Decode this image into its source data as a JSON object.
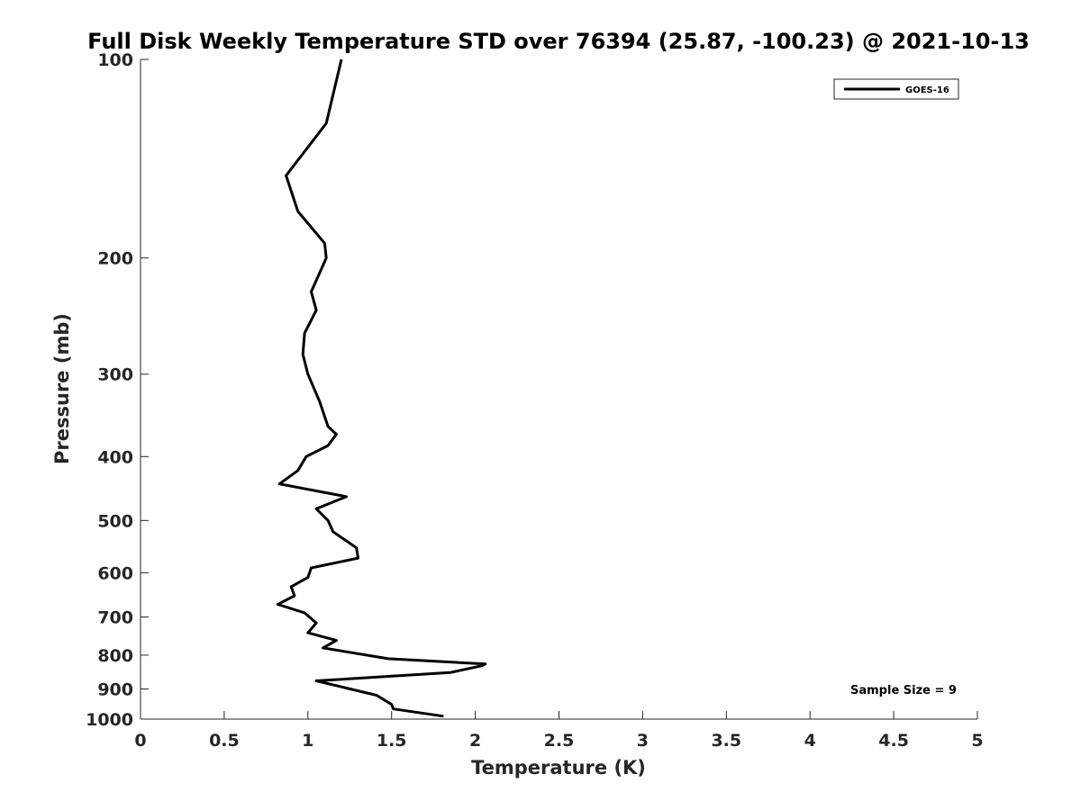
{
  "chart_data": {
    "type": "line",
    "title": "Full Disk Weekly Temperature STD over 76394 (25.87, -100.23) @ 2021-10-13",
    "xlabel": "Temperature (K)",
    "ylabel": "Pressure (mb)",
    "xlim": [
      0,
      5
    ],
    "ylim": [
      100,
      1000
    ],
    "y_scale": "log",
    "y_reversed": true,
    "grid": false,
    "legend_position": "top-right",
    "x_ticks": [
      "0",
      "0.5",
      "1",
      "1.5",
      "2",
      "2.5",
      "3",
      "3.5",
      "4",
      "4.5",
      "5"
    ],
    "y_ticks": [
      "100",
      "200",
      "300",
      "400",
      "500",
      "600",
      "700",
      "800",
      "900",
      "1000"
    ],
    "annotation": "Sample Size = 9",
    "series": [
      {
        "name": "GOES-16",
        "color": "#000000",
        "x": [
          1.2,
          1.11,
          0.87,
          0.94,
          1.1,
          1.11,
          1.02,
          1.05,
          0.98,
          0.97,
          1.0,
          1.07,
          1.12,
          1.17,
          1.12,
          0.99,
          0.94,
          0.83,
          1.23,
          1.05,
          1.12,
          1.15,
          1.29,
          1.3,
          1.02,
          1.0,
          0.9,
          0.92,
          0.82,
          0.98,
          1.05,
          1.0,
          1.17,
          1.09,
          1.48,
          2.06,
          2.04,
          1.85,
          1.05,
          1.41,
          1.5,
          1.51,
          1.81
        ],
        "y": [
          100,
          125,
          150,
          170,
          190,
          200,
          225,
          240,
          260,
          280,
          300,
          330,
          360,
          370,
          385,
          400,
          420,
          440,
          460,
          480,
          500,
          520,
          550,
          570,
          590,
          610,
          630,
          650,
          670,
          690,
          715,
          740,
          760,
          780,
          810,
          825,
          830,
          850,
          875,
          920,
          950,
          965,
          990
        ]
      }
    ]
  }
}
